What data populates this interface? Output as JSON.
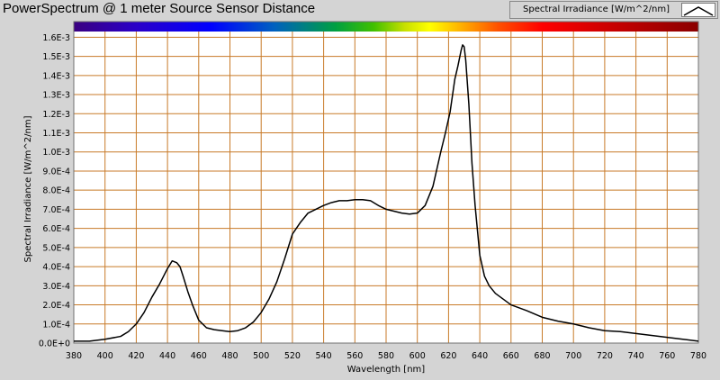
{
  "window": {
    "title": "PowerSpectrum @ 1 meter Source Sensor Distance"
  },
  "legend": {
    "label": "Spectral Irradiance [W/m^2/nm]",
    "line_color": "#000000"
  },
  "colors": {
    "panel_background": "#d4d4d4",
    "plot_background": "#ffffff",
    "grid": "#c87a28",
    "line": "#000000"
  },
  "chart_data": {
    "type": "line",
    "xlabel": "Wavelength [nm]",
    "ylabel": "Spectral Irradiance [W/m^2/nm]",
    "xlim": [
      380,
      780
    ],
    "ylim": [
      0,
      0.00163
    ],
    "grid": true,
    "legend_position": "top-right",
    "x_ticks": [
      380,
      400,
      420,
      440,
      460,
      480,
      500,
      520,
      540,
      560,
      580,
      600,
      620,
      640,
      660,
      680,
      700,
      720,
      740,
      760,
      780
    ],
    "x_tick_labels": [
      "380",
      "400",
      "420",
      "440",
      "460",
      "480",
      "500",
      "520",
      "540",
      "560",
      "580",
      "600",
      "620",
      "640",
      "660",
      "680",
      "700",
      "720",
      "740",
      "760",
      "780"
    ],
    "y_ticks": [
      0,
      0.0001,
      0.0002,
      0.0003,
      0.0004,
      0.0005,
      0.0006,
      0.0007,
      0.0008,
      0.0009,
      0.001,
      0.0011,
      0.0012,
      0.0013,
      0.0014,
      0.0015,
      0.0016
    ],
    "y_tick_labels": [
      "0.0E+0",
      "1.0E-4",
      "2.0E-4",
      "3.0E-4",
      "4.0E-4",
      "5.0E-4",
      "6.0E-4",
      "7.0E-4",
      "8.0E-4",
      "9.0E-4",
      "1.0E-3",
      "1.1E-3",
      "1.2E-3",
      "1.3E-3",
      "1.4E-3",
      "1.5E-3",
      "1.6E-3"
    ],
    "series": [
      {
        "color": "#000000",
        "x": [
          380,
          390,
          400,
          410,
          415,
          420,
          425,
          430,
          435,
          440,
          443,
          446,
          448,
          450,
          453,
          456,
          460,
          465,
          470,
          475,
          480,
          485,
          490,
          495,
          500,
          505,
          510,
          515,
          520,
          525,
          530,
          535,
          540,
          545,
          550,
          555,
          560,
          565,
          570,
          575,
          580,
          585,
          590,
          595,
          600,
          605,
          610,
          615,
          618,
          621,
          624,
          626,
          628,
          629,
          630,
          631,
          633,
          635,
          637,
          640,
          643,
          646,
          650,
          655,
          660,
          670,
          680,
          690,
          700,
          710,
          720,
          730,
          740,
          750,
          760,
          770,
          780
        ],
        "y": [
          1e-05,
          1e-05,
          2e-05,
          3.5e-05,
          6e-05,
          0.0001,
          0.00016,
          0.00024,
          0.00031,
          0.00039,
          0.00043,
          0.00042,
          0.0004,
          0.00035,
          0.00027,
          0.0002,
          0.00012,
          8e-05,
          7e-05,
          6.5e-05,
          6e-05,
          6.5e-05,
          8e-05,
          0.00011,
          0.00016,
          0.00023,
          0.00032,
          0.00044,
          0.00057,
          0.00063,
          0.00068,
          0.0007,
          0.00072,
          0.000735,
          0.000745,
          0.000745,
          0.00075,
          0.00075,
          0.000745,
          0.00072,
          0.0007,
          0.00069,
          0.00068,
          0.000675,
          0.00068,
          0.00072,
          0.00082,
          0.001,
          0.0011,
          0.00121,
          0.00138,
          0.00145,
          0.00153,
          0.00156,
          0.00155,
          0.00148,
          0.00125,
          0.00094,
          0.00072,
          0.00046,
          0.00035,
          0.0003,
          0.00026,
          0.00023,
          0.0002,
          0.00017,
          0.000135,
          0.000115,
          0.0001,
          8e-05,
          6.5e-05,
          6e-05,
          5e-05,
          4e-05,
          3e-05,
          2e-05,
          1e-05
        ]
      }
    ]
  }
}
